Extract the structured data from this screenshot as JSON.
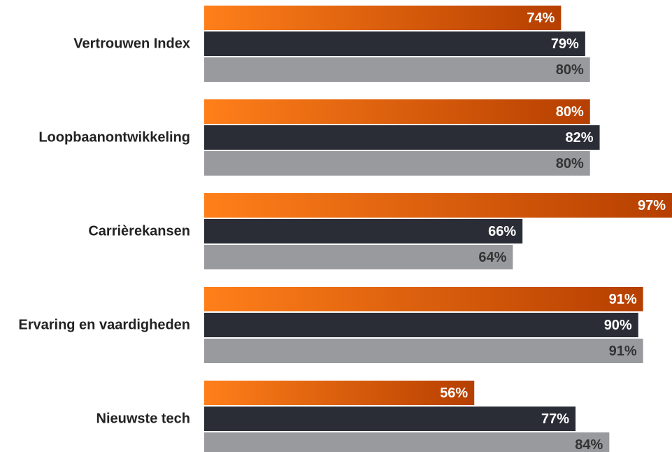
{
  "chart_data": {
    "type": "bar",
    "orientation": "horizontal",
    "categories": [
      "Vertrouwen Index",
      "Loopbaanontwikkeling",
      "Carrièrekansen",
      "Ervaring en vaardigheden",
      "Nieuwste tech"
    ],
    "series": [
      {
        "color": [
          "#ff7f1a",
          "#b63f00"
        ],
        "values": [
          74,
          80,
          97,
          91,
          56
        ],
        "value_labels": [
          "74%",
          "80%",
          "97%",
          "91%",
          "56%"
        ],
        "label_color": "#ffffff"
      },
      {
        "color": "#2a2d36",
        "values": [
          79,
          82,
          66,
          90,
          77
        ],
        "value_labels": [
          "79%",
          "82%",
          "66%",
          "90%",
          "77%"
        ],
        "label_color": "#ffffff"
      },
      {
        "color": "#999a9e",
        "values": [
          80,
          80,
          64,
          91,
          84
        ],
        "value_labels": [
          "80%",
          "80%",
          "64%",
          "91%",
          "84%"
        ],
        "label_color": "#333333"
      }
    ],
    "xlim": [
      0,
      97
    ]
  }
}
